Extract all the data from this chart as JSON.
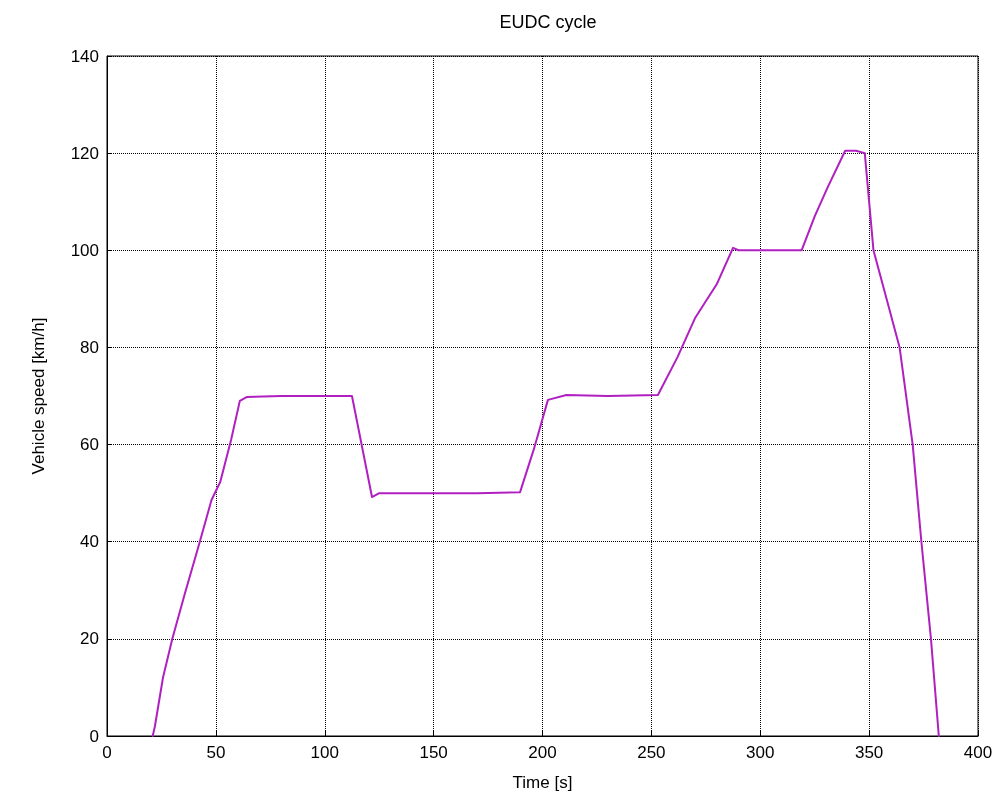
{
  "chart_data": {
    "type": "line",
    "title": "EUDC cycle",
    "xlabel": "Time [s]",
    "ylabel": "Vehicle speed [km/h]",
    "xlim": [
      0,
      400
    ],
    "xticks": [
      0,
      50,
      100,
      150,
      200,
      250,
      300,
      350,
      400
    ],
    "ylim": [
      0,
      140
    ],
    "yticks": [
      0,
      20,
      40,
      60,
      80,
      100,
      120,
      140
    ],
    "grid": true,
    "marker": "none",
    "line_style": "solid",
    "series": [
      {
        "color": "#b020c0",
        "x": [
          21,
          22,
          25.7,
          30,
          35.8,
          42,
          48,
          52,
          57,
          61,
          64.3,
          80,
          100,
          112.5,
          121.7,
          125,
          150,
          170,
          189.7,
          196,
          202.5,
          211,
          230,
          253,
          262,
          270,
          280,
          287.5,
          290,
          300,
          310,
          319,
          325,
          331,
          339,
          344,
          348,
          352,
          358,
          364,
          370,
          374,
          378.4,
          382
        ],
        "values": [
          0,
          2,
          12,
          20,
          29.4,
          39,
          48.6,
          52.3,
          61,
          69,
          69.8,
          70,
          70,
          70,
          49.2,
          50,
          50,
          50,
          50.2,
          59,
          69.2,
          70.2,
          70,
          70.2,
          78,
          86,
          93,
          100.5,
          100,
          100,
          100,
          100,
          107,
          113,
          120.5,
          120.5,
          120,
          100,
          90,
          80,
          60,
          40,
          20,
          0
        ]
      }
    ]
  }
}
